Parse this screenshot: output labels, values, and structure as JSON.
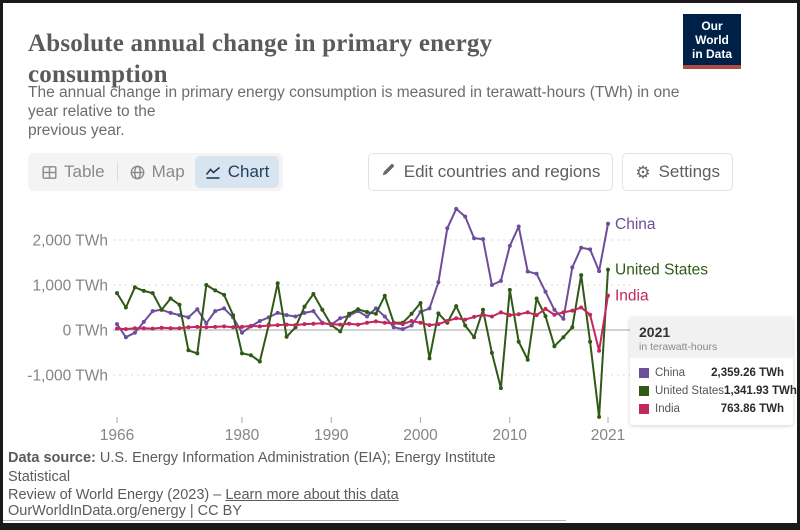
{
  "header": {
    "title": "Absolute annual change in primary energy consumption",
    "title_lines": [
      "Absolute annual change in primary energy",
      "consumption"
    ],
    "subtitle_lines": [
      "The annual change in primary energy consumption is measured in terawatt-hours (TWh) in one",
      "year relative to the",
      "previous year."
    ],
    "logo": {
      "line1": "Our World",
      "line2": "in Data",
      "bg_color": "#002147",
      "stripe_color": "#b04a48"
    }
  },
  "toolbar": {
    "tabs": [
      {
        "label": "Table",
        "active": false
      },
      {
        "label": "Map",
        "active": false
      },
      {
        "label": "Chart",
        "active": true
      }
    ],
    "edit_button": "Edit countries and regions",
    "settings_button": "Settings",
    "active_tab_bg": "#d9e4f1",
    "active_tab_color": "#1f3f60"
  },
  "chart_data": {
    "type": "line",
    "title": "Absolute annual change in primary energy consumption",
    "xlabel": "",
    "ylabel": "TWh",
    "ylim": [
      -2100,
      2800
    ],
    "grid": "horizontal-dashed",
    "legend_position": "end-of-line-labels",
    "x": [
      1966,
      1967,
      1968,
      1969,
      1970,
      1971,
      1972,
      1973,
      1974,
      1975,
      1976,
      1977,
      1978,
      1979,
      1980,
      1981,
      1982,
      1983,
      1984,
      1985,
      1986,
      1987,
      1988,
      1989,
      1990,
      1991,
      1992,
      1993,
      1994,
      1995,
      1996,
      1997,
      1998,
      1999,
      2000,
      2001,
      2002,
      2003,
      2004,
      2005,
      2006,
      2007,
      2008,
      2009,
      2010,
      2011,
      2012,
      2013,
      2014,
      2015,
      2016,
      2017,
      2018,
      2019,
      2020,
      2021
    ],
    "xticks": [
      {
        "value": 1966,
        "label": "1966"
      },
      {
        "value": 1980,
        "label": "1980"
      },
      {
        "value": 1990,
        "label": "1990"
      },
      {
        "value": 2000,
        "label": "2000"
      },
      {
        "value": 2010,
        "label": "2010"
      },
      {
        "value": 2021,
        "label": "2021"
      }
    ],
    "yticks": [
      {
        "value": 2000,
        "label": "2,000 TWh"
      },
      {
        "value": 1000,
        "label": "1,000 TWh"
      },
      {
        "value": 0,
        "label": "0 TWh"
      },
      {
        "value": -1000,
        "label": "-1,000 TWh"
      }
    ],
    "series": [
      {
        "name": "China",
        "color": "#6d4e9b",
        "values": [
          130,
          -160,
          -60,
          180,
          420,
          450,
          380,
          330,
          280,
          460,
          150,
          420,
          480,
          280,
          -60,
          80,
          200,
          280,
          380,
          330,
          300,
          380,
          420,
          160,
          120,
          260,
          320,
          420,
          300,
          480,
          300,
          60,
          20,
          100,
          400,
          480,
          1060,
          2260,
          2690,
          2520,
          2040,
          2020,
          1000,
          1090,
          1870,
          2300,
          1300,
          1250,
          850,
          450,
          250,
          1390,
          1830,
          1790,
          1310,
          2359.26
        ]
      },
      {
        "name": "United States",
        "color": "#2f5a16",
        "values": [
          820,
          500,
          950,
          870,
          820,
          450,
          700,
          560,
          -450,
          -520,
          1000,
          880,
          780,
          330,
          -520,
          -560,
          -700,
          120,
          1040,
          -150,
          60,
          520,
          800,
          450,
          110,
          -30,
          360,
          460,
          400,
          360,
          760,
          160,
          160,
          360,
          600,
          -630,
          370,
          160,
          530,
          100,
          -160,
          450,
          -510,
          -1290,
          890,
          -260,
          -660,
          700,
          310,
          -360,
          -160,
          60,
          1220,
          -260,
          -1930,
          1341.93
        ]
      },
      {
        "name": "India",
        "color": "#c2275d",
        "values": [
          30,
          20,
          40,
          40,
          30,
          50,
          40,
          40,
          60,
          70,
          60,
          70,
          80,
          60,
          70,
          90,
          80,
          100,
          110,
          120,
          110,
          130,
          140,
          150,
          130,
          120,
          140,
          120,
          160,
          190,
          160,
          150,
          130,
          200,
          160,
          110,
          130,
          200,
          260,
          230,
          290,
          340,
          300,
          390,
          330,
          350,
          390,
          330,
          470,
          340,
          390,
          430,
          500,
          340,
          -460,
          763.86
        ]
      }
    ]
  },
  "tooltip": {
    "year": "2021",
    "unit": "in terawatt-hours",
    "rows": [
      {
        "name": "China",
        "value": "2,359.26 TWh",
        "color": "#6d4e9b"
      },
      {
        "name": "United States",
        "value": "1,341.93 TWh",
        "color": "#2f5a16"
      },
      {
        "name": "India",
        "value": "763.86 TWh",
        "color": "#c2275d"
      }
    ]
  },
  "footer": {
    "source_label": "Data source:",
    "source_text": "U.S. Energy Information Administration (EIA); Energy Institute",
    "source_line2": "Statistical",
    "source_line3": "Review of World Energy (2023) –",
    "learn_more": "Learn more about this data",
    "citation": "OurWorldInData.org/energy | CC BY"
  }
}
